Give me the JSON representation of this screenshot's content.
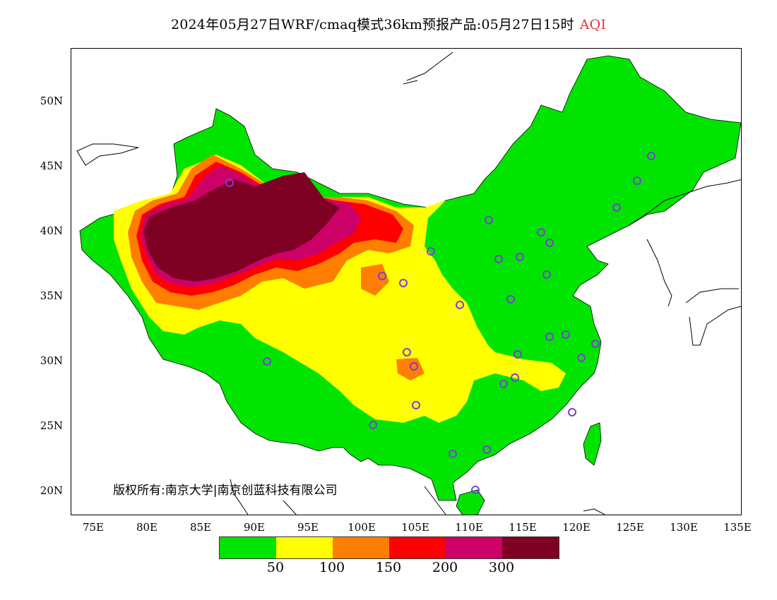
{
  "title": {
    "main": "2024年05月27日WRF/cmaq模式36km预报产品:05月27日15时",
    "variable": "AQI"
  },
  "axes": {
    "lat_ticks": [
      "50N",
      "45N",
      "40N",
      "35N",
      "30N",
      "25N",
      "20N"
    ],
    "lon_ticks": [
      "75E",
      "80E",
      "85E",
      "90E",
      "95E",
      "100E",
      "105E",
      "110E",
      "115E",
      "120E",
      "125E",
      "130E",
      "135E"
    ]
  },
  "legend": {
    "colors": [
      "#00e400",
      "#ffff00",
      "#ff7e00",
      "#ff0000",
      "#cc0066",
      "#7e0023"
    ],
    "labels": [
      "50",
      "100",
      "150",
      "200",
      "300"
    ]
  },
  "copyright": "版权所有:南京大学|南京创蓝科技有限公司"
}
